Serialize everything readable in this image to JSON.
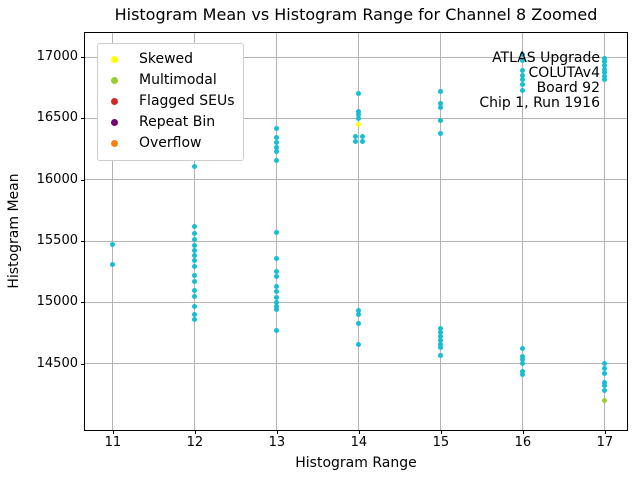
{
  "chart_data": {
    "type": "scatter",
    "title": "Histogram Mean vs Histogram Range for Channel 8 Zoomed",
    "xlabel": "Histogram Range",
    "ylabel": "Histogram Mean",
    "xlim": [
      10.66,
      17.27
    ],
    "ylim": [
      13959,
      17196
    ],
    "xticks": [
      11,
      12,
      13,
      14,
      15,
      16,
      17
    ],
    "yticks": [
      14500,
      15000,
      15500,
      16000,
      16500,
      17000
    ],
    "grid": true,
    "grid_color": "#b4b4b4",
    "legend_position": "upper left",
    "legend_entries": [
      {
        "label": "Skewed",
        "color": "#ffff00"
      },
      {
        "label": "Multimodal",
        "color": "#9acd32"
      },
      {
        "label": "Flagged SEUs",
        "color": "#d62728"
      },
      {
        "label": "Repeat Bin",
        "color": "#770077"
      },
      {
        "label": "Overflow",
        "color": "#ff7f0e"
      }
    ],
    "annotation": {
      "align": "right",
      "lines": [
        "ATLAS Upgrade",
        "COLUTAv4",
        "Board 92",
        "Chip 1, Run 1916"
      ]
    },
    "series": [
      {
        "name": "Channel 8 histograms",
        "color": "#17becf",
        "points": [
          [
            11,
            15470
          ],
          [
            11,
            15310
          ],
          [
            12,
            16180
          ],
          [
            12,
            16110
          ],
          [
            12,
            15620
          ],
          [
            12,
            15560
          ],
          [
            12,
            15510
          ],
          [
            12,
            15460
          ],
          [
            12,
            15420
          ],
          [
            12,
            15380
          ],
          [
            12,
            15340
          ],
          [
            12,
            15290
          ],
          [
            12,
            15220
          ],
          [
            12,
            15170
          ],
          [
            12,
            15100
          ],
          [
            12,
            15050
          ],
          [
            12,
            14970
          ],
          [
            12,
            14900
          ],
          [
            12,
            14860
          ],
          [
            13,
            16420
          ],
          [
            13,
            16340
          ],
          [
            13,
            16300
          ],
          [
            13,
            16260
          ],
          [
            13,
            16230
          ],
          [
            13,
            16160
          ],
          [
            13,
            15570
          ],
          [
            13,
            15360
          ],
          [
            13,
            15250
          ],
          [
            13,
            15210
          ],
          [
            13,
            15130
          ],
          [
            13,
            15090
          ],
          [
            13,
            15040
          ],
          [
            13,
            15000
          ],
          [
            13,
            14970
          ],
          [
            13,
            14940
          ],
          [
            13,
            14770
          ],
          [
            14,
            16700
          ],
          [
            14,
            16560
          ],
          [
            14,
            16530
          ],
          [
            14,
            16500
          ],
          [
            13.96,
            16350
          ],
          [
            14.04,
            16350
          ],
          [
            13.96,
            16310
          ],
          [
            14.04,
            16310
          ],
          [
            14,
            14930
          ],
          [
            14,
            14900
          ],
          [
            14,
            14830
          ],
          [
            14,
            14660
          ],
          [
            15,
            16720
          ],
          [
            15,
            16620
          ],
          [
            15,
            16590
          ],
          [
            15,
            16480
          ],
          [
            15,
            16380
          ],
          [
            15,
            14790
          ],
          [
            15,
            14750
          ],
          [
            15,
            14720
          ],
          [
            15,
            14690
          ],
          [
            15,
            14660
          ],
          [
            15,
            14630
          ],
          [
            15,
            14570
          ],
          [
            16,
            17020
          ],
          [
            16,
            16970
          ],
          [
            16,
            16890
          ],
          [
            16,
            16850
          ],
          [
            16,
            16820
          ],
          [
            16,
            16780
          ],
          [
            16,
            16730
          ],
          [
            16,
            14620
          ],
          [
            16,
            14560
          ],
          [
            16,
            14530
          ],
          [
            16,
            14500
          ],
          [
            16,
            14440
          ],
          [
            16,
            14410
          ],
          [
            17,
            16990
          ],
          [
            17,
            16960
          ],
          [
            17,
            16930
          ],
          [
            17,
            16900
          ],
          [
            17,
            16870
          ],
          [
            17,
            16840
          ],
          [
            17,
            16820
          ],
          [
            17,
            14500
          ],
          [
            17,
            14460
          ],
          [
            17,
            14420
          ],
          [
            17,
            14350
          ],
          [
            17,
            14320
          ],
          [
            17,
            14280
          ]
        ]
      },
      {
        "name": "Skewed",
        "color": "#ffff00",
        "points": [
          [
            14,
            16450
          ]
        ]
      },
      {
        "name": "Multimodal",
        "color": "#9acd32",
        "points": [
          [
            17,
            14200
          ]
        ]
      }
    ]
  }
}
